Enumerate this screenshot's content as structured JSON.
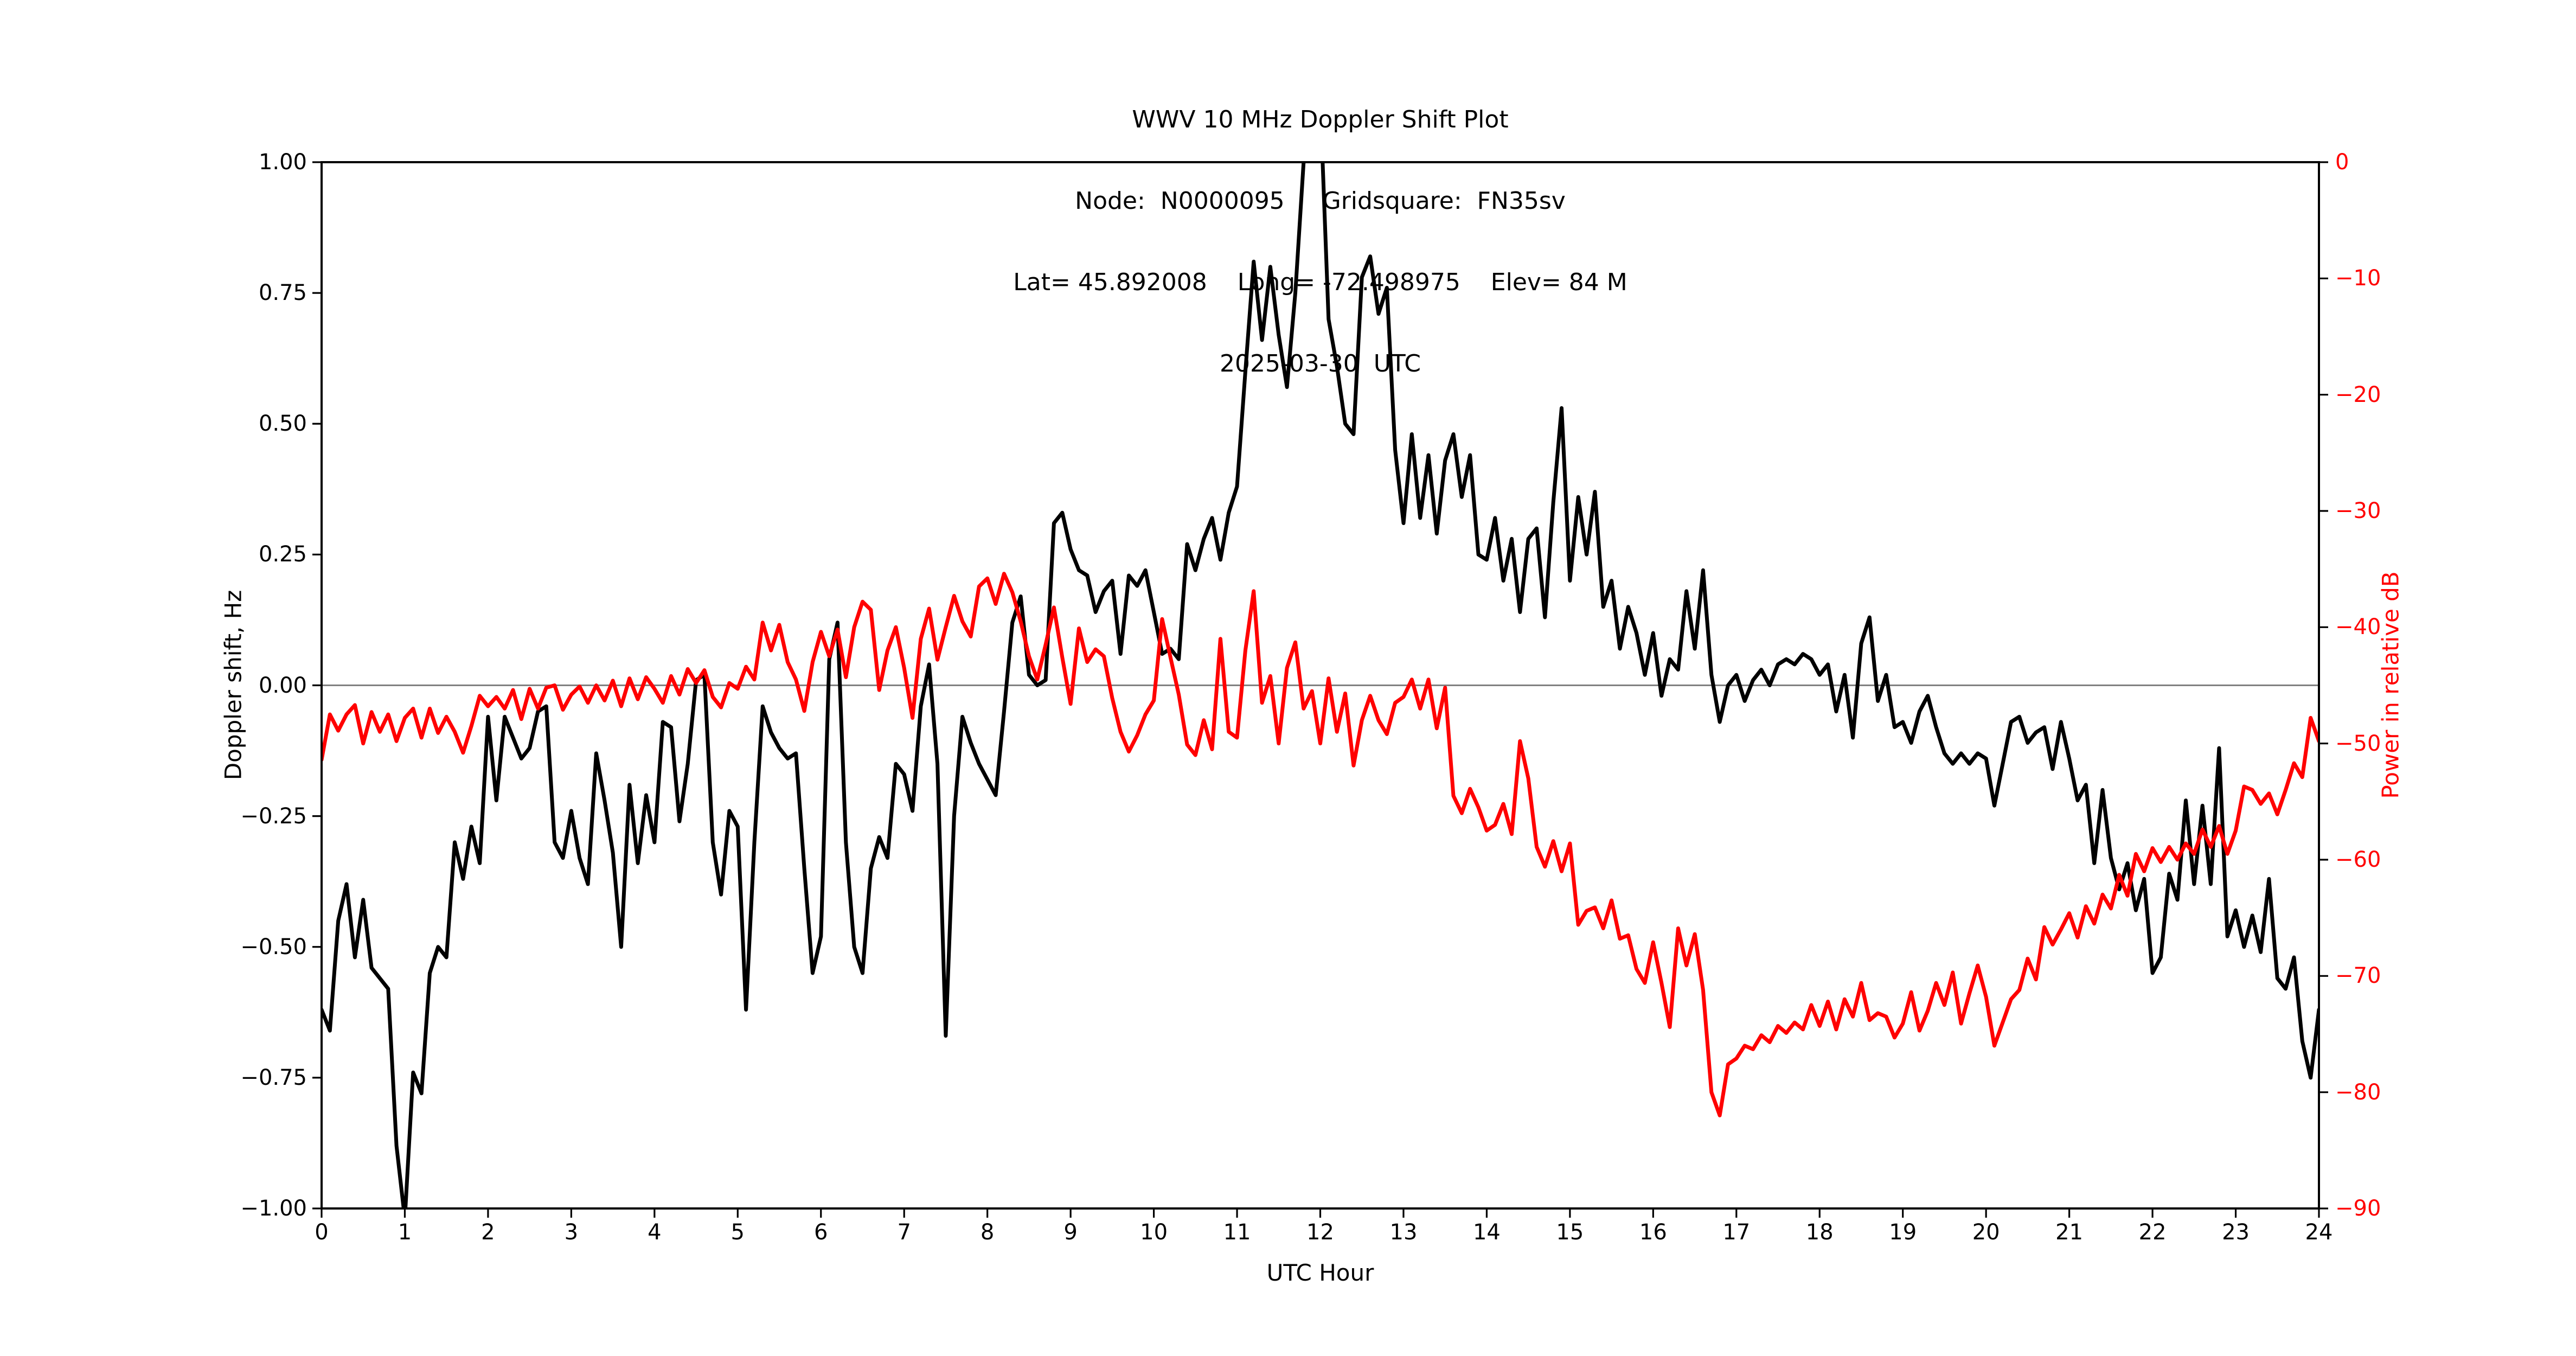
{
  "title": {
    "line1": "WWV 10 MHz Doppler Shift Plot",
    "line2": "Node:  N0000095     Gridsquare:  FN35sv",
    "line3": "Lat= 45.892008    Long= -72.498975    Elev= 84 M",
    "line4": "2025-03-30  UTC"
  },
  "colors": {
    "doppler_series": "#000000",
    "power_series": "#ff0000",
    "zero_line": "#808080",
    "frame": "#000000",
    "background": "#ffffff"
  },
  "chart_data": {
    "type": "line",
    "title": "WWV 10 MHz Doppler Shift Plot",
    "xlabel": "UTC Hour",
    "ylabel_left": "Doppler shift, Hz",
    "ylabel_right": "Power in relative dB",
    "x_range_hours": [
      0,
      24
    ],
    "x_tick_step_hours": 1,
    "x_tick_labels": [
      "0",
      "1",
      "2",
      "3",
      "4",
      "5",
      "6",
      "7",
      "8",
      "9",
      "10",
      "11",
      "12",
      "13",
      "14",
      "15",
      "16",
      "17",
      "18",
      "19",
      "20",
      "21",
      "22",
      "23",
      "24"
    ],
    "left_axis": {
      "range": [
        -1.0,
        1.0
      ],
      "tick_labels": [
        "1.00",
        "0.75",
        "0.50",
        "0.25",
        "0.00",
        "−0.25",
        "−0.50",
        "−0.75",
        "−1.00"
      ]
    },
    "right_axis": {
      "range": [
        -90,
        0
      ],
      "tick_labels": [
        "0",
        "−10",
        "−20",
        "−30",
        "−40",
        "−50",
        "−60",
        "−70",
        "−80",
        "−90"
      ]
    },
    "grid": "horizontal line at 0.00 Hz only",
    "legend": "none",
    "sample_step_hours": 0.1,
    "series": [
      {
        "name": "Doppler shift, Hz",
        "axis": "left",
        "color": "#000000",
        "values": [
          -0.62,
          -0.66,
          -0.45,
          -0.38,
          -0.52,
          -0.41,
          -0.54,
          -0.56,
          -0.58,
          -0.88,
          -1.02,
          -0.74,
          -0.78,
          -0.55,
          -0.5,
          -0.52,
          -0.3,
          -0.37,
          -0.27,
          -0.34,
          -0.06,
          -0.22,
          -0.06,
          -0.1,
          -0.14,
          -0.12,
          -0.05,
          -0.04,
          -0.3,
          -0.33,
          -0.24,
          -0.33,
          -0.38,
          -0.13,
          -0.22,
          -0.32,
          -0.5,
          -0.19,
          -0.34,
          -0.21,
          -0.3,
          -0.07,
          -0.08,
          -0.26,
          -0.15,
          0.01,
          0.02,
          -0.3,
          -0.4,
          -0.24,
          -0.27,
          -0.62,
          -0.3,
          -0.04,
          -0.09,
          -0.12,
          -0.14,
          -0.13,
          -0.35,
          -0.55,
          -0.48,
          0.05,
          0.12,
          -0.3,
          -0.5,
          -0.55,
          -0.35,
          -0.29,
          -0.33,
          -0.15,
          -0.17,
          -0.24,
          -0.04,
          0.04,
          -0.15,
          -0.67,
          -0.25,
          -0.06,
          -0.11,
          -0.15,
          -0.18,
          -0.21,
          -0.05,
          0.12,
          0.17,
          0.02,
          0.0,
          0.01,
          0.31,
          0.33,
          0.26,
          0.22,
          0.21,
          0.14,
          0.18,
          0.2,
          0.06,
          0.21,
          0.19,
          0.22,
          0.14,
          0.06,
          0.07,
          0.05,
          0.27,
          0.22,
          0.28,
          0.32,
          0.24,
          0.33,
          0.38,
          0.6,
          0.81,
          0.66,
          0.8,
          0.67,
          0.57,
          0.75,
          1.0,
          1.18,
          1.12,
          0.7,
          0.61,
          0.5,
          0.48,
          0.78,
          0.82,
          0.71,
          0.76,
          0.45,
          0.31,
          0.48,
          0.32,
          0.44,
          0.29,
          0.43,
          0.48,
          0.36,
          0.44,
          0.25,
          0.24,
          0.32,
          0.2,
          0.28,
          0.14,
          0.28,
          0.3,
          0.13,
          0.35,
          0.53,
          0.2,
          0.36,
          0.25,
          0.37,
          0.15,
          0.2,
          0.07,
          0.15,
          0.1,
          0.02,
          0.1,
          -0.02,
          0.05,
          0.03,
          0.18,
          0.07,
          0.22,
          0.02,
          -0.07,
          0.0,
          0.02,
          -0.03,
          0.01,
          0.03,
          0.0,
          0.04,
          0.05,
          0.04,
          0.06,
          0.05,
          0.02,
          0.04,
          -0.05,
          0.02,
          -0.1,
          0.08,
          0.13,
          -0.03,
          0.02,
          -0.08,
          -0.07,
          -0.11,
          -0.05,
          -0.02,
          -0.08,
          -0.13,
          -0.15,
          -0.13,
          -0.15,
          -0.13,
          -0.14,
          -0.23,
          -0.15,
          -0.07,
          -0.06,
          -0.11,
          -0.09,
          -0.08,
          -0.16,
          -0.07,
          -0.14,
          -0.22,
          -0.19,
          -0.34,
          -0.2,
          -0.33,
          -0.39,
          -0.34,
          -0.43,
          -0.37,
          -0.55,
          -0.52,
          -0.36,
          -0.41,
          -0.22,
          -0.38,
          -0.23,
          -0.38,
          -0.12,
          -0.48,
          -0.43,
          -0.5,
          -0.44,
          -0.51,
          -0.37,
          -0.56,
          -0.58,
          -0.52,
          -0.68,
          -0.75,
          -0.62
        ]
      },
      {
        "name": "Power in relative dB",
        "axis": "right",
        "color": "#ff0000",
        "values": [
          -51.4,
          -47.5,
          -48.9,
          -47.5,
          -46.7,
          -50.0,
          -47.3,
          -49.0,
          -47.5,
          -49.8,
          -47.8,
          -47.0,
          -49.5,
          -47.0,
          -49.1,
          -47.7,
          -49.0,
          -50.8,
          -48.5,
          -45.9,
          -46.8,
          -46.0,
          -47.0,
          -45.4,
          -47.9,
          -45.3,
          -47.0,
          -45.2,
          -45.0,
          -47.1,
          -45.8,
          -45.1,
          -46.5,
          -45.0,
          -46.3,
          -44.6,
          -46.8,
          -44.4,
          -46.2,
          -44.3,
          -45.3,
          -46.5,
          -44.2,
          -45.8,
          -43.6,
          -44.8,
          -43.7,
          -46.0,
          -46.9,
          -44.8,
          -45.3,
          -43.4,
          -44.5,
          -39.6,
          -42.0,
          -39.8,
          -43.0,
          -44.5,
          -47.2,
          -43.0,
          -40.4,
          -42.5,
          -40.2,
          -44.3,
          -40.0,
          -37.8,
          -38.5,
          -45.4,
          -42.0,
          -40.0,
          -43.5,
          -47.8,
          -41.0,
          -38.4,
          -42.8,
          -40.0,
          -37.3,
          -39.5,
          -40.8,
          -36.5,
          -35.8,
          -38.0,
          -35.4,
          -37.0,
          -39.5,
          -42.5,
          -44.5,
          -41.5,
          -38.3,
          -42.6,
          -46.6,
          -40.1,
          -43.0,
          -41.9,
          -42.5,
          -46.1,
          -49.0,
          -50.7,
          -49.3,
          -47.5,
          -46.3,
          -39.3,
          -42.6,
          -45.8,
          -50.1,
          -51.0,
          -48.0,
          -50.5,
          -41.0,
          -49.0,
          -49.5,
          -42.0,
          -36.9,
          -46.5,
          -44.2,
          -50.0,
          -43.5,
          -41.3,
          -47.0,
          -45.5,
          -50.0,
          -44.4,
          -49.0,
          -45.7,
          -51.9,
          -48.0,
          -45.9,
          -48.0,
          -49.2,
          -46.5,
          -46.0,
          -44.5,
          -47.0,
          -44.5,
          -48.7,
          -45.2,
          -54.5,
          -56.0,
          -53.9,
          -55.5,
          -57.5,
          -57.0,
          -55.2,
          -57.8,
          -49.8,
          -53.0,
          -58.9,
          -60.6,
          -58.4,
          -61.0,
          -58.6,
          -65.6,
          -64.4,
          -64.1,
          -65.9,
          -63.5,
          -66.8,
          -66.5,
          -69.4,
          -70.6,
          -67.1,
          -70.6,
          -74.4,
          -65.9,
          -69.1,
          -66.4,
          -71.2,
          -80.0,
          -82.0,
          -77.6,
          -77.1,
          -76.0,
          -76.3,
          -75.1,
          -75.7,
          -74.3,
          -74.9,
          -74.0,
          -74.6,
          -72.5,
          -74.3,
          -72.2,
          -74.6,
          -72.0,
          -73.5,
          -70.6,
          -73.8,
          -73.2,
          -73.5,
          -75.3,
          -74.1,
          -71.4,
          -74.7,
          -73.0,
          -70.6,
          -72.5,
          -69.7,
          -74.1,
          -71.5,
          -69.1,
          -71.8,
          -76.0,
          -74.0,
          -72.0,
          -71.2,
          -68.5,
          -70.3,
          -65.8,
          -67.3,
          -66.0,
          -64.6,
          -66.7,
          -64.0,
          -65.5,
          -63.0,
          -64.2,
          -61.3,
          -63.1,
          -59.5,
          -61.0,
          -59.0,
          -60.2,
          -58.9,
          -60.0,
          -58.6,
          -59.5,
          -57.4,
          -58.9,
          -57.1,
          -59.5,
          -57.5,
          -53.7,
          -54.0,
          -55.2,
          -54.3,
          -56.1,
          -54.0,
          -51.7,
          -52.9,
          -47.8,
          -49.8
        ]
      }
    ]
  }
}
